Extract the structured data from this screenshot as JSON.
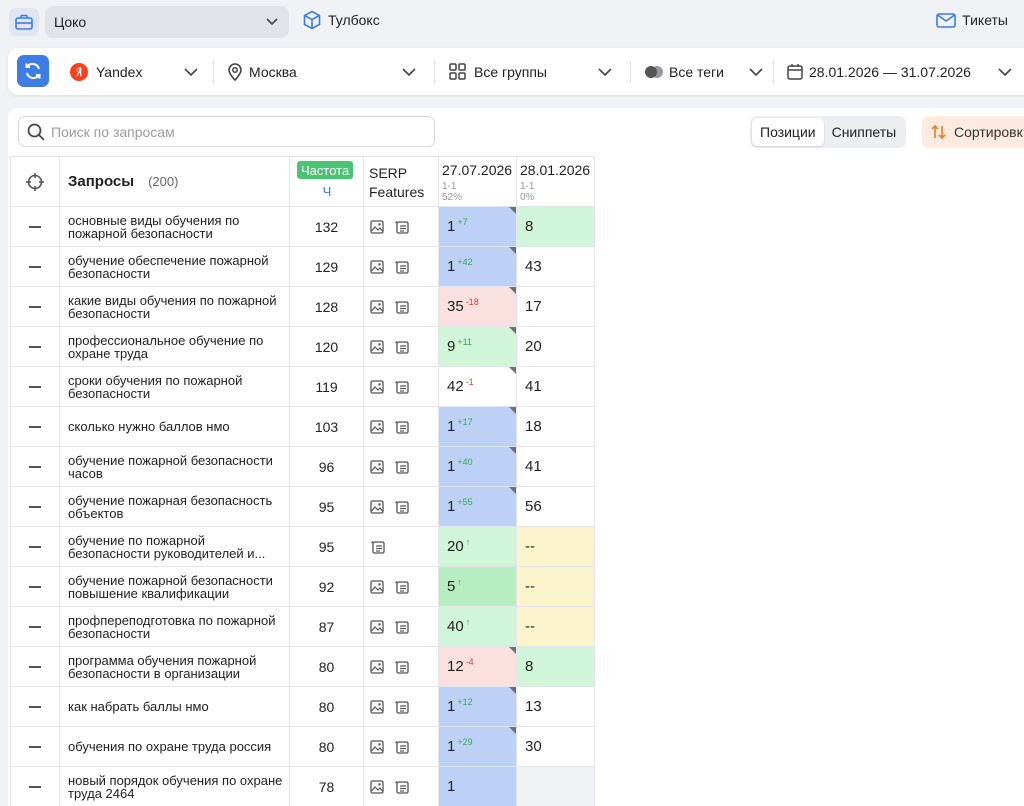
{
  "topbar": {
    "project": "Цоко",
    "toolbox": "Тулбокс",
    "tickets": "Тикеты"
  },
  "filters": {
    "engine": "Yandex",
    "region": "Москва",
    "groups": "Все группы",
    "tags": "Все теги",
    "dates": "28.01.2026 — 31.07.2026"
  },
  "search": {
    "placeholder": "Поиск по запросам"
  },
  "view_tabs": [
    "Позиции",
    "Сниппеты"
  ],
  "sort_label": "Сортировк",
  "table": {
    "query_header": "Запросы",
    "query_count": "(200)",
    "freq_header": "Частота",
    "freq_sub": "Ч",
    "serp_header_1": "SERP",
    "serp_header_2": "Features",
    "dates": [
      {
        "date": "27.07.2026",
        "range": "1-1",
        "pct": "52%"
      },
      {
        "date": "28.01.2026",
        "range": "1-1",
        "pct": "0%"
      }
    ],
    "rows": [
      {
        "q": "основные виды обучения по пожарной безопасности",
        "f": "132",
        "icons": 2,
        "p1": "1",
        "d1": "+7",
        "dir1": "up",
        "c1": "blue",
        "corner": true,
        "p2": "8",
        "c2": "green"
      },
      {
        "q": "обучение обеспечение пожарной безопасности",
        "f": "129",
        "icons": 2,
        "p1": "1",
        "d1": "+42",
        "dir1": "up",
        "c1": "blue",
        "corner": true,
        "p2": "43",
        "c2": "white"
      },
      {
        "q": "какие виды обучения по пожарной безопасности",
        "f": "128",
        "icons": 2,
        "p1": "35",
        "d1": "-18",
        "dir1": "down",
        "c1": "red",
        "corner": true,
        "p2": "17",
        "c2": "white"
      },
      {
        "q": "профессиональное обучение по охране труда",
        "f": "120",
        "icons": 2,
        "p1": "9",
        "d1": "+11",
        "dir1": "up",
        "c1": "green",
        "corner": true,
        "p2": "20",
        "c2": "white"
      },
      {
        "q": "сроки обучения по пожарной безопасности",
        "f": "119",
        "icons": 2,
        "p1": "42",
        "d1": "-1",
        "dir1": "down",
        "c1": "white",
        "corner": true,
        "p2": "41",
        "c2": "white"
      },
      {
        "q": "сколько нужно баллов нмо",
        "f": "103",
        "icons": 2,
        "p1": "1",
        "d1": "+17",
        "dir1": "up",
        "c1": "blue",
        "corner": true,
        "p2": "18",
        "c2": "white"
      },
      {
        "q": "обучение пожарной безопасности часов",
        "f": "96",
        "icons": 2,
        "p1": "1",
        "d1": "+40",
        "dir1": "up",
        "c1": "blue",
        "corner": true,
        "p2": "41",
        "c2": "white"
      },
      {
        "q": "обучение пожарная безопасность объектов",
        "f": "95",
        "icons": 2,
        "p1": "1",
        "d1": "+55",
        "dir1": "up",
        "c1": "blue",
        "corner": true,
        "p2": "56",
        "c2": "white"
      },
      {
        "q": "обучение по пожарной безопасности руководителей и...",
        "f": "95",
        "icons": 1,
        "p1": "20",
        "d1": "↑",
        "dir1": "up",
        "c1": "green",
        "corner": false,
        "p2": "--",
        "c2": "yellow"
      },
      {
        "q": "обучение пожарной безопасности повышение квалификации",
        "f": "92",
        "icons": 2,
        "p1": "5",
        "d1": "↑",
        "dir1": "up",
        "c1": "green2",
        "corner": false,
        "p2": "--",
        "c2": "yellow"
      },
      {
        "q": "профпереподготовка по пожарной безопасности",
        "f": "87",
        "icons": 2,
        "p1": "40",
        "d1": "↑",
        "dir1": "up",
        "c1": "green",
        "corner": false,
        "p2": "--",
        "c2": "yellow"
      },
      {
        "q": "программа обучения пожарной безопасности в организации",
        "f": "80",
        "icons": 2,
        "p1": "12",
        "d1": "-4",
        "dir1": "down",
        "c1": "red",
        "corner": true,
        "p2": "8",
        "c2": "green"
      },
      {
        "q": "как набрать баллы нмо",
        "f": "80",
        "icons": 2,
        "p1": "1",
        "d1": "+12",
        "dir1": "up",
        "c1": "blue",
        "corner": true,
        "p2": "13",
        "c2": "white"
      },
      {
        "q": "обучения по охране труда россия",
        "f": "80",
        "icons": 2,
        "p1": "1",
        "d1": "+29",
        "dir1": "up",
        "c1": "blue",
        "corner": true,
        "p2": "30",
        "c2": "white"
      },
      {
        "q": "новый порядок обучения по охране труда 2464",
        "f": "78",
        "icons": 2,
        "p1": "1",
        "d1": "",
        "dir1": "up",
        "c1": "blue",
        "corner": false,
        "p2": "",
        "c2": "grey"
      }
    ]
  },
  "colors": {
    "blue": "#bdd0f6",
    "green": "#d0f5d8",
    "green2": "#b6eec2",
    "red": "#fbe0e0",
    "yellow": "#fcf4cc",
    "grey": "#f1f2f4",
    "white": "#ffffff",
    "accent": "#3d7de6"
  }
}
